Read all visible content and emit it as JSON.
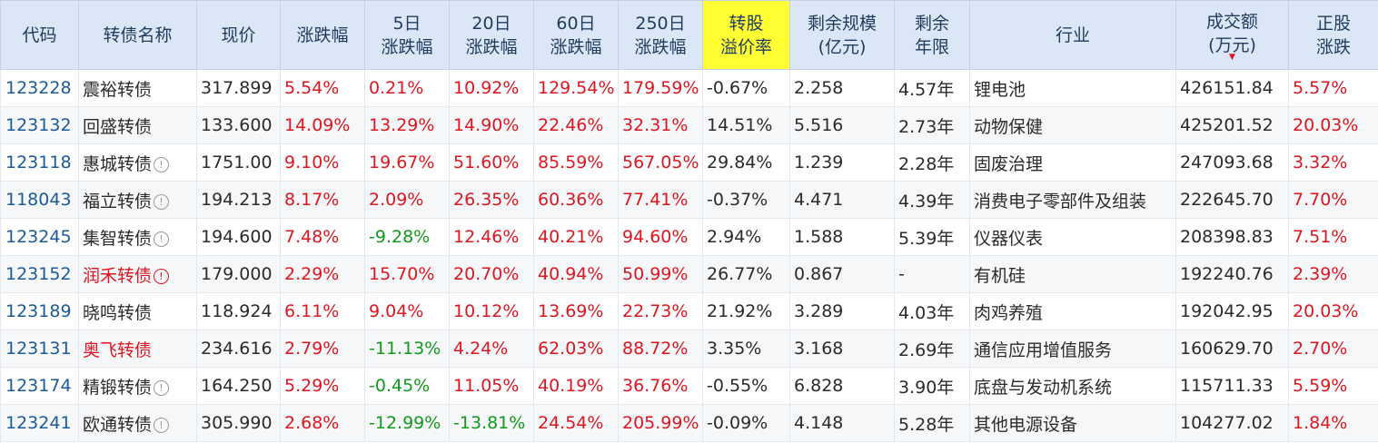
{
  "headers": [
    [
      "代码"
    ],
    [
      "转债名称"
    ],
    [
      "现价"
    ],
    [
      "涨跌幅"
    ],
    [
      "5日",
      "涨跌幅"
    ],
    [
      "20日",
      "涨跌幅"
    ],
    [
      "60日",
      "涨跌幅"
    ],
    [
      "250日",
      "涨跌幅"
    ],
    [
      "转股",
      "溢价率"
    ],
    [
      "剩余规模",
      "(亿元)"
    ],
    [
      "剩余",
      "年限"
    ],
    [
      "行业"
    ],
    [
      "成交额",
      "(万元)"
    ],
    [
      "正股",
      "涨跌"
    ]
  ],
  "colors": {
    "up": "#e0151f",
    "down": "#119a1c",
    "header_bg": "#dbe7f6",
    "highlight": "#ffff33",
    "code": "#1c5a9c"
  },
  "sort_icon": "sort-desc-icon",
  "rows": [
    {
      "code": "123228",
      "name": "震裕转债",
      "name_red": false,
      "info": "none",
      "price": "317.899",
      "chg": "5.54%",
      "chg5": "0.21%",
      "chg20": "10.92%",
      "chg60": "129.54%",
      "chg250": "179.59%",
      "premium": "-0.67%",
      "scale": "2.258",
      "years": "4.57年",
      "industry": "锂电池",
      "amount": "426151.84",
      "stock_chg": "5.57%"
    },
    {
      "code": "123132",
      "name": "回盛转债",
      "name_red": false,
      "info": "none",
      "price": "133.600",
      "chg": "14.09%",
      "chg5": "13.29%",
      "chg20": "14.90%",
      "chg60": "22.46%",
      "chg250": "32.31%",
      "premium": "14.51%",
      "scale": "5.516",
      "years": "2.73年",
      "industry": "动物保健",
      "amount": "425201.52",
      "stock_chg": "20.03%"
    },
    {
      "code": "123118",
      "name": "惠城转债",
      "name_red": false,
      "info": "gray",
      "price": "1751.00",
      "chg": "9.10%",
      "chg5": "19.67%",
      "chg20": "51.60%",
      "chg60": "85.59%",
      "chg250": "567.05%",
      "premium": "29.84%",
      "scale": "1.239",
      "years": "2.28年",
      "industry": "固废治理",
      "amount": "247093.68",
      "stock_chg": "3.32%"
    },
    {
      "code": "118043",
      "name": "福立转债",
      "name_red": false,
      "info": "gray",
      "price": "194.213",
      "chg": "8.17%",
      "chg5": "2.09%",
      "chg20": "26.35%",
      "chg60": "60.36%",
      "chg250": "77.41%",
      "premium": "-0.37%",
      "scale": "4.471",
      "years": "4.39年",
      "industry": "消费电子零部件及组装",
      "amount": "222645.70",
      "stock_chg": "7.70%"
    },
    {
      "code": "123245",
      "name": "集智转债",
      "name_red": false,
      "info": "gray",
      "price": "194.600",
      "chg": "7.48%",
      "chg5": "-9.28%",
      "chg20": "12.46%",
      "chg60": "40.21%",
      "chg250": "94.60%",
      "premium": "2.94%",
      "scale": "1.588",
      "years": "5.39年",
      "industry": "仪器仪表",
      "amount": "208398.83",
      "stock_chg": "7.51%"
    },
    {
      "code": "123152",
      "name": "润禾转债",
      "name_red": true,
      "info": "red",
      "price": "179.000",
      "chg": "2.29%",
      "chg5": "15.70%",
      "chg20": "20.70%",
      "chg60": "40.94%",
      "chg250": "50.99%",
      "premium": "26.77%",
      "scale": "0.867",
      "years": "-",
      "industry": "有机硅",
      "amount": "192240.76",
      "stock_chg": "2.39%"
    },
    {
      "code": "123189",
      "name": "晓鸣转债",
      "name_red": false,
      "info": "none",
      "price": "118.924",
      "chg": "6.11%",
      "chg5": "9.04%",
      "chg20": "10.12%",
      "chg60": "13.69%",
      "chg250": "22.73%",
      "premium": "21.92%",
      "scale": "3.289",
      "years": "4.03年",
      "industry": "肉鸡养殖",
      "amount": "192042.95",
      "stock_chg": "20.03%"
    },
    {
      "code": "123131",
      "name": "奥飞转债",
      "name_red": true,
      "info": "none",
      "price": "234.616",
      "chg": "2.79%",
      "chg5": "-11.13%",
      "chg20": "4.24%",
      "chg60": "62.03%",
      "chg250": "88.72%",
      "premium": "3.35%",
      "scale": "3.168",
      "years": "2.69年",
      "industry": "通信应用增值服务",
      "amount": "160629.70",
      "stock_chg": "2.70%"
    },
    {
      "code": "123174",
      "name": "精锻转债",
      "name_red": false,
      "info": "gray",
      "price": "164.250",
      "chg": "5.29%",
      "chg5": "-0.45%",
      "chg20": "11.05%",
      "chg60": "40.19%",
      "chg250": "36.76%",
      "premium": "-0.55%",
      "scale": "6.828",
      "years": "3.90年",
      "industry": "底盘与发动机系统",
      "amount": "115711.33",
      "stock_chg": "5.59%"
    },
    {
      "code": "123241",
      "name": "欧通转债",
      "name_red": false,
      "info": "gray",
      "price": "305.990",
      "chg": "2.68%",
      "chg5": "-12.99%",
      "chg20": "-13.81%",
      "chg60": "24.54%",
      "chg250": "205.99%",
      "premium": "-0.09%",
      "scale": "4.148",
      "years": "5.28年",
      "industry": "其他电源设备",
      "amount": "104277.02",
      "stock_chg": "1.84%"
    }
  ]
}
